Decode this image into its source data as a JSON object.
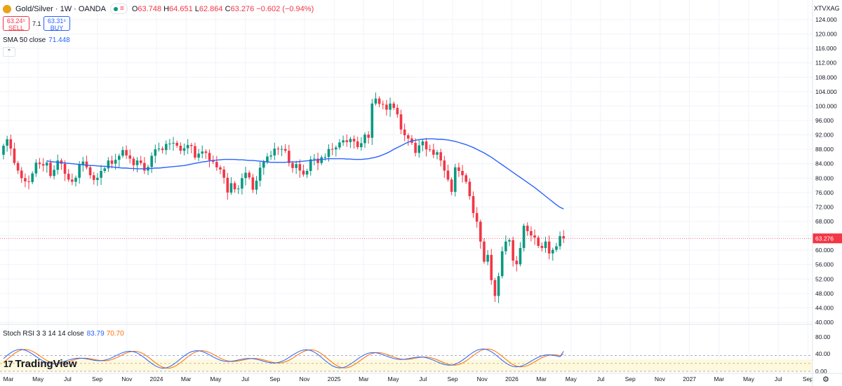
{
  "header": {
    "symbol": "Gold/Silver · 1W · OANDA",
    "open_label": "O",
    "open": "63.748",
    "high_label": "H",
    "high": "64.651",
    "low_label": "L",
    "low": "62.864",
    "close_label": "C",
    "close": "63.276",
    "change": "−0.602 (−0.94%)"
  },
  "trade": {
    "sell_price": "63.24⁵",
    "sell_label": "SELL",
    "spread": "7.1",
    "buy_price": "63.31⁶",
    "buy_label": "BUY"
  },
  "sma": {
    "label": "SMA 50 close",
    "value": "71.448"
  },
  "stoch": {
    "label": "Stoch RSI 3 3 14 14 close",
    "k": "83.79",
    "d": "70.70"
  },
  "brand": {
    "logo": "17",
    "name": "TradingView"
  },
  "axis_symbol": "XTVXAG",
  "colors": {
    "up": "#089981",
    "down": "#f23645",
    "sma": "#2962ff",
    "stoch_k": "#2962ff",
    "stoch_d": "#ff6d00",
    "band": "#fff9dc"
  },
  "chart_data": [
    {
      "type": "candlestick",
      "title": "Gold/Silver · 1W · OANDA",
      "ylim": [
        40,
        124
      ],
      "y_ticks": [
        "124.000",
        "120.000",
        "116.000",
        "112.000",
        "108.000",
        "104.000",
        "100.000",
        "96.000",
        "92.000",
        "88.000",
        "84.000",
        "80.000",
        "76.000",
        "72.000",
        "68.000",
        "64.000",
        "60.000",
        "56.000",
        "52.000",
        "48.000",
        "44.000",
        "40.000"
      ],
      "current_price_label": "63.276",
      "x_labels": [
        "Mar",
        "May",
        "Jul",
        "Sep",
        "Nov",
        "2024",
        "Mar",
        "May",
        "Jul",
        "Sep",
        "Nov",
        "2025",
        "Mar",
        "May",
        "Jul",
        "Sep",
        "Nov",
        "2026",
        "Mar",
        "May",
        "Jul",
        "Sep",
        "Nov",
        "2027",
        "Mar",
        "May",
        "Jul",
        "Sep"
      ],
      "close": [
        89.0,
        90.8,
        88.2,
        84.2,
        82.1,
        80.0,
        79.1,
        78.9,
        81.3,
        84.3,
        83.9,
        83.5,
        84.3,
        80.6,
        82.3,
        84.9,
        84.0,
        81.2,
        79.6,
        79.0,
        80.1,
        83.8,
        84.6,
        83.0,
        80.8,
        79.5,
        80.1,
        82.0,
        82.7,
        84.9,
        84.0,
        85.1,
        86.2,
        87.8,
        86.3,
        85.4,
        83.6,
        84.9,
        84.2,
        82.1,
        83.1,
        86.2,
        88.0,
        88.2,
        87.8,
        89.5,
        89.6,
        89.8,
        89.0,
        87.6,
        88.3,
        89.2,
        88.9,
        85.7,
        86.8,
        87.4,
        87.0,
        85.0,
        84.5,
        83.0,
        82.4,
        80.1,
        76.0,
        78.6,
        76.9,
        77.1,
        80.0,
        81.5,
        80.2,
        76.8,
        79.3,
        82.9,
        84.5,
        86.0,
        86.3,
        88.2,
        88.1,
        88.1,
        87.6,
        84.2,
        82.8,
        83.9,
        82.1,
        81.0,
        82.0,
        85.2,
        85.4,
        84.2,
        85.8,
        85.9,
        88.1,
        88.0,
        88.5,
        89.9,
        90.5,
        90.0,
        90.9,
        90.2,
        88.6,
        89.7,
        92.1,
        91.2,
        100.7,
        102.1,
        100.6,
        100.4,
        99.0,
        100.7,
        99.5,
        97.7,
        93.5,
        91.9,
        91.0,
        89.8,
        87.0,
        89.1,
        90.2,
        88.0,
        87.9,
        86.5,
        87.2,
        84.9,
        82.1,
        79.6,
        76.2,
        83.0,
        82.0,
        80.8,
        79.0,
        75.0,
        70.3,
        67.9,
        62.4,
        56.8,
        58.7,
        51.7,
        47.3,
        52.8,
        59.7,
        62.4,
        62.8,
        57.1,
        56.1,
        60.6,
        66.8,
        65.3,
        64.1,
        63.5,
        61.2,
        60.6,
        62.4,
        59.1,
        60.1,
        61.1,
        63.9,
        63.28
      ],
      "sma_50_end": 71.448,
      "sma_50": [
        84.8,
        84.6,
        84.5,
        84.4,
        84.3,
        84.2,
        84.1,
        84.0,
        83.9,
        83.8,
        83.7,
        83.6,
        83.5,
        83.5,
        83.4,
        83.3,
        83.3,
        83.2,
        83.1,
        83.0,
        82.9,
        82.8,
        82.8,
        82.7,
        82.7,
        82.6,
        82.6,
        82.6,
        82.7,
        82.7,
        82.8,
        82.8,
        82.9,
        83.0,
        83.1,
        83.2,
        83.3,
        83.4,
        83.5,
        83.7,
        83.9,
        84.1,
        84.3,
        84.5,
        84.6,
        84.8,
        84.9,
        85.0,
        85.1,
        85.2,
        85.2,
        85.2,
        85.2,
        85.1,
        85.1,
        85.0,
        84.9,
        84.9,
        84.8,
        84.7,
        84.6,
        84.5,
        84.4,
        84.4,
        84.4,
        84.4,
        84.4,
        84.5,
        84.5,
        84.5,
        84.6,
        84.7,
        84.8,
        84.9,
        85.0,
        85.1,
        85.2,
        85.3,
        85.4,
        85.4,
        85.4,
        85.4,
        85.4,
        85.3,
        85.3,
        85.2,
        85.2,
        85.2,
        85.3,
        85.4,
        85.6,
        85.8,
        86.1,
        86.5,
        86.9,
        87.4,
        88.0,
        88.5,
        89.0,
        89.5,
        90.0,
        90.3,
        90.5,
        90.7,
        90.8,
        90.9,
        90.9,
        90.9,
        90.8,
        90.8,
        90.7,
        90.6,
        90.4,
        90.2,
        89.9,
        89.6,
        89.3,
        88.9,
        88.5,
        88.0,
        87.5,
        87.0,
        86.4,
        85.8,
        85.1,
        84.4,
        83.7,
        83.0,
        82.3,
        81.6,
        80.9,
        80.2,
        79.5,
        78.8,
        78.1,
        77.4,
        76.6,
        75.8,
        75.0,
        74.2,
        73.4,
        72.6,
        71.9,
        71.448
      ]
    },
    {
      "type": "line",
      "title": "Stoch RSI 3 3 14 14 close",
      "ylim": [
        0,
        100
      ],
      "y_ticks": [
        "80.00",
        "40.00",
        "0.00"
      ],
      "band": [
        20,
        80
      ],
      "series": [
        {
          "name": "K",
          "last": 83.79
        },
        {
          "name": "D",
          "last": 70.7
        }
      ]
    }
  ]
}
